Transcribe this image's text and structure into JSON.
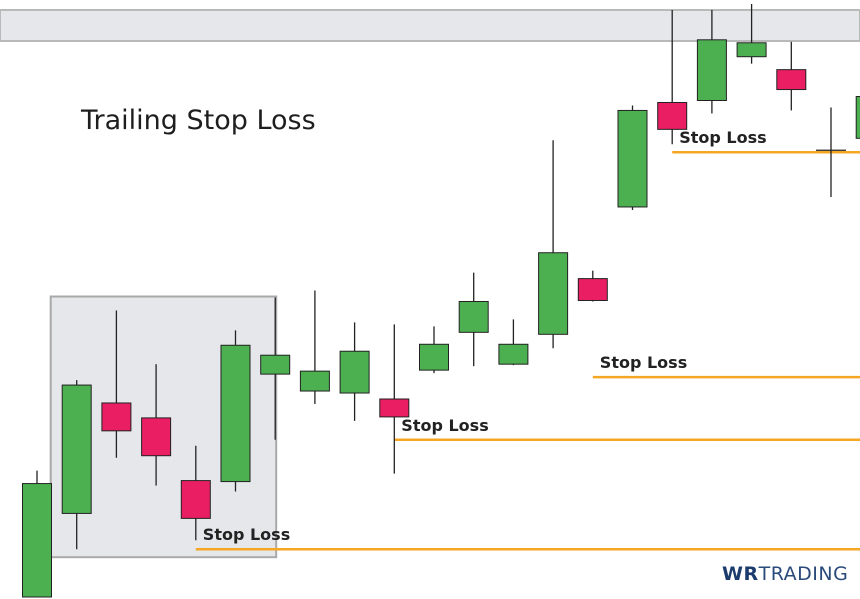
{
  "chart_data": {
    "type": "candlestick",
    "title": "Trailing Stop Loss",
    "colors": {
      "bull": "#4caf50",
      "bear": "#e91e63",
      "stop_line": "#f5a623",
      "range_box": "#e6e7ea"
    },
    "candles": [
      {
        "open": 114,
        "high": 127,
        "low": 0,
        "close": 0,
        "dir": "bull"
      },
      {
        "open": 84,
        "high": 218,
        "low": 48,
        "close": 213,
        "dir": "bull"
      },
      {
        "open": 195,
        "high": 288,
        "low": 140,
        "close": 167,
        "dir": "bear"
      },
      {
        "open": 180,
        "high": 234,
        "low": 112,
        "close": 142,
        "dir": "bear"
      },
      {
        "open": 117,
        "high": 152,
        "low": 57,
        "close": 79,
        "dir": "bear"
      },
      {
        "open": 116,
        "high": 268,
        "low": 106,
        "close": 253,
        "dir": "bull"
      },
      {
        "open": 224,
        "high": 301,
        "low": 158,
        "close": 243,
        "dir": "bull"
      },
      {
        "open": 207,
        "high": 308,
        "low": 194,
        "close": 227,
        "dir": "bull"
      },
      {
        "open": 205,
        "high": 276,
        "low": 177,
        "close": 247,
        "dir": "bull"
      },
      {
        "open": 199,
        "high": 274,
        "low": 124,
        "close": 181,
        "dir": "bear"
      },
      {
        "open": 228,
        "high": 272,
        "low": 225,
        "close": 254,
        "dir": "bull"
      },
      {
        "open": 266,
        "high": 326,
        "low": 232,
        "close": 297,
        "dir": "bull"
      },
      {
        "open": 234,
        "high": 279,
        "low": 233,
        "close": 254,
        "dir": "bull"
      },
      {
        "open": 264,
        "high": 459,
        "low": 250,
        "close": 346,
        "dir": "bull"
      },
      {
        "open": 320,
        "high": 328,
        "low": 297,
        "close": 298,
        "dir": "bear"
      },
      {
        "open": 392,
        "high": 494,
        "low": 389,
        "close": 489,
        "dir": "bull"
      },
      {
        "open": 497,
        "high": 590,
        "low": 455,
        "close": 470,
        "dir": "bear"
      },
      {
        "open": 499,
        "high": 590,
        "low": 486,
        "close": 560,
        "dir": "bull"
      },
      {
        "open": 543,
        "high": 596,
        "low": 536,
        "close": 557,
        "dir": "bull"
      },
      {
        "open": 530,
        "high": 558,
        "low": 489,
        "close": 510,
        "dir": "bear"
      },
      {
        "open": 449,
        "high": 492,
        "low": 402,
        "close": 449,
        "dir": "doji"
      },
      {
        "open": 461,
        "high": 503,
        "low": 461,
        "close": 503,
        "dir": "bull"
      }
    ],
    "stop_losses": [
      {
        "label": "Stop Loss",
        "value": 48,
        "from_candle": 4
      },
      {
        "label": "Stop Loss",
        "value": 158,
        "from_candle": 9
      },
      {
        "label": "Stop Loss",
        "value": 221,
        "from_candle": 14
      },
      {
        "label": "Stop Loss",
        "value": 447,
        "from_candle": 16
      }
    ],
    "range_box": {
      "from_candle": 1,
      "to_candle": 6,
      "low": 40,
      "high": 302
    },
    "ylim": [
      0,
      600
    ]
  },
  "brand": {
    "mark": "WR",
    "name": "TRADING"
  }
}
